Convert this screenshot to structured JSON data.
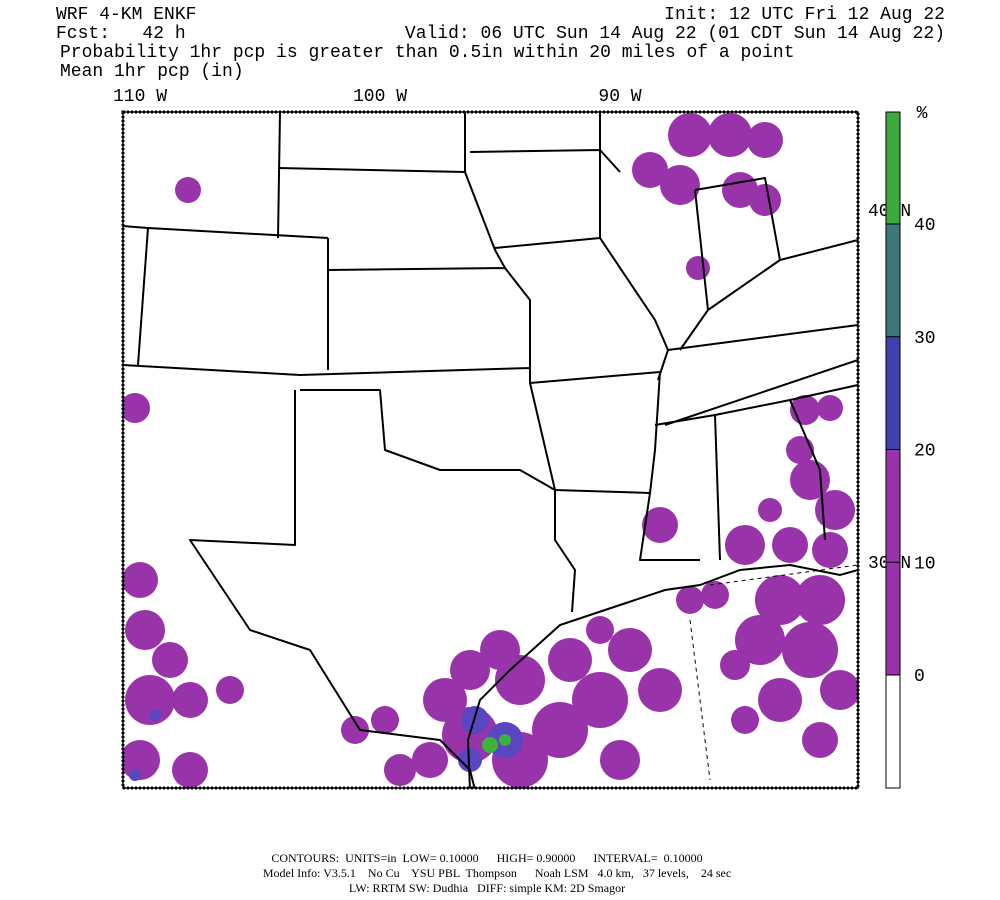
{
  "header": {
    "title": "WRF 4-KM ENKF",
    "init": "Init: 12 UTC Fri 12 Aug 22",
    "forecast": "Fcst:   42 h",
    "valid": "Valid: 06 UTC Sun 14 Aug 22 (01 CDT Sun 14 Aug 22)",
    "field": "Probability 1hr pcp is greater than 0.5in within 20 miles of a point",
    "overlay": "Mean 1hr pcp (in)"
  },
  "map": {
    "longitude_labels": [
      "110 W",
      "100 W",
      "90 W"
    ],
    "latitude_labels": [
      "40 N",
      "30 N"
    ]
  },
  "colorbar": {
    "unit": "%",
    "ticks": [
      0,
      10,
      20,
      30,
      40
    ],
    "colors": [
      "#ffffff",
      "#9933aa",
      "#9933aa",
      "#4040b0",
      "#3c7878",
      "#3caa3c"
    ]
  },
  "footer": {
    "lines": [
      "CONTOURS:  UNITS=in  LOW= 0.10000      HIGH= 0.90000      INTERVAL=  0.10000",
      "Model Info: V3.5.1    No Cu    YSU PBL  Thompson      Noah LSM   4.0 km,   37 levels,    24 sec",
      "LW: RRTM SW: Dudhia   DIFF: simple KM: 2D Smagor"
    ]
  }
}
